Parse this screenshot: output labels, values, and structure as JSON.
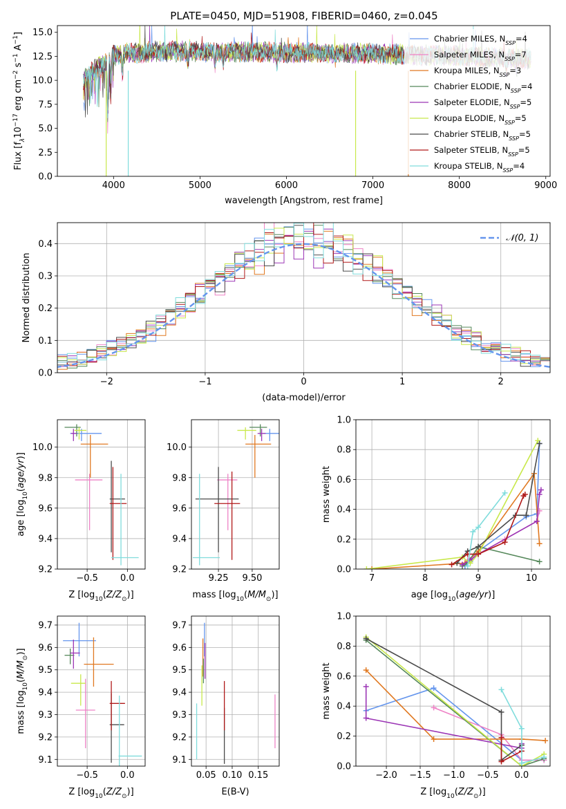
{
  "figure_title": "PLATE=0450, MJD=51908, FIBERID=0460, z=0.045",
  "colors": [
    "#6495ed",
    "#ee82c6",
    "#e07820",
    "#55885a",
    "#9b35b5",
    "#c8e84a",
    "#4a4a4a",
    "#b01818",
    "#7fdcdc"
  ],
  "chart_data": [
    {
      "id": "spectrum",
      "type": "line",
      "title": "PLATE=0450, MJD=51908, FIBERID=0460, z=0.045",
      "xlabel": "wavelength [Angstrom, rest frame]",
      "ylabel_parts": [
        "Flux [f",
        "λ",
        "10",
        "−17",
        " erg cm",
        "−2",
        " s",
        "−1",
        " A",
        "−1",
        "]"
      ],
      "xlim": [
        3350,
        9050
      ],
      "ylim": [
        0,
        15.7
      ],
      "xticks": [
        "4000",
        "5000",
        "6000",
        "7000",
        "8000",
        "9000"
      ],
      "xtick_values": [
        4000,
        5000,
        6000,
        7000,
        8000,
        9000
      ],
      "yticks": [
        "0.0",
        "2.5",
        "5.0",
        "7.5",
        "10.0",
        "12.5",
        "15.0"
      ],
      "ytick_values": [
        0,
        2.5,
        5,
        7.5,
        10,
        12.5,
        15
      ],
      "wave_range": [
        3650,
        8830
      ],
      "continuum": [
        [
          3650,
          10.0
        ],
        [
          3800,
          11.2
        ],
        [
          4000,
          12.6
        ],
        [
          4500,
          13.0
        ],
        [
          5000,
          13.0
        ],
        [
          6000,
          12.9
        ],
        [
          7000,
          12.8
        ],
        [
          8000,
          12.5
        ],
        [
          8830,
          12.2
        ]
      ],
      "absorption_features": [
        [
          3934,
          7.5
        ],
        [
          3969,
          3.0
        ],
        [
          4102,
          2.5
        ],
        [
          4861,
          1.5
        ],
        [
          5175,
          2.0
        ],
        [
          5270,
          1.0
        ],
        [
          5890,
          1.5
        ],
        [
          6563,
          1.0
        ],
        [
          8542,
          1.5
        ],
        [
          8662,
          1.5
        ]
      ],
      "spikes_to_zero": [
        3915,
        4170,
        6800,
        7410
      ],
      "legend_position": "upper right",
      "legend": [
        {
          "name": "Chabrier MILES, N",
          "sub": "SSP",
          "rest": "=4"
        },
        {
          "name": "Salpeter MILES, N",
          "sub": "SSP",
          "rest": "=7"
        },
        {
          "name": "Kroupa MILES, N",
          "sub": "SSP",
          "rest": "=3"
        },
        {
          "name": "Chabrier ELODIE, N",
          "sub": "SSP",
          "rest": "=4"
        },
        {
          "name": "Salpeter ELODIE, N",
          "sub": "SSP",
          "rest": "=5"
        },
        {
          "name": "Kroupa ELODIE, N",
          "sub": "SSP",
          "rest": "=5"
        },
        {
          "name": "Chabrier STELIB, N",
          "sub": "SSP",
          "rest": "=5"
        },
        {
          "name": "Salpeter STELIB, N",
          "sub": "SSP",
          "rest": "=5"
        },
        {
          "name": "Kroupa STELIB, N",
          "sub": "SSP",
          "rest": "=4"
        }
      ]
    },
    {
      "id": "residuals",
      "type": "histogram",
      "xlabel": "(data-model)/error",
      "ylabel": "Normed distribution",
      "xlim": [
        -2.5,
        2.5
      ],
      "ylim": [
        0,
        0.465
      ],
      "xticks": [
        "−2",
        "−1",
        "0",
        "1",
        "2"
      ],
      "xtick_values": [
        -2,
        -1,
        0,
        1,
        2
      ],
      "yticks": [
        "0.0",
        "0.1",
        "0.2",
        "0.3",
        "0.4"
      ],
      "ytick_values": [
        0,
        0.1,
        0.2,
        0.3,
        0.4
      ],
      "grid": true,
      "bin_width": 0.1,
      "reference_curve": {
        "label_math": "𝒩(0, 1)",
        "type": "gaussian",
        "mean": 0,
        "sigma": 1
      },
      "legend_position": "upper right"
    },
    {
      "id": "age-vs-Z",
      "type": "scatter",
      "xlabel": "Z [log10(Z/Z⊙)]",
      "ylabel": "age  [log10(age/yr)]",
      "xlim": [
        -0.87,
        0.22
      ],
      "ylim": [
        9.2,
        10.18
      ],
      "xticks": [
        "−0.5",
        "0.0"
      ],
      "xtick_values": [
        -0.5,
        0.0
      ],
      "yticks": [
        "9.2",
        "9.4",
        "9.6",
        "9.8",
        "10.0"
      ],
      "ytick_values": [
        9.2,
        9.4,
        9.6,
        9.8,
        10.0
      ],
      "grid": true,
      "points": [
        {
          "x": -0.57,
          "y": 10.09,
          "xerr": [
            0.14,
            0.25
          ],
          "yerr": [
            0.05,
            0.03
          ]
        },
        {
          "x": -0.47,
          "y": 9.785,
          "xerr": [
            0.18,
            0.16
          ],
          "yerr": [
            0.33,
            0.04
          ]
        },
        {
          "x": -0.46,
          "y": 10.02,
          "xerr": [
            0.12,
            0.22
          ],
          "yerr": [
            0.22,
            0.06
          ]
        },
        {
          "x": -0.63,
          "y": 10.13,
          "xerr": [
            0.15,
            0.05
          ],
          "yerr": [
            0.06,
            0.02
          ]
        },
        {
          "x": -0.67,
          "y": 10.09,
          "xerr": [
            0.03,
            0.04
          ],
          "yerr": [
            0.05,
            0.03
          ]
        },
        {
          "x": -0.6,
          "y": 10.11,
          "xerr": [
            0.06,
            0.09
          ],
          "yerr": [
            0.06,
            0.02
          ]
        },
        {
          "x": -0.2,
          "y": 9.66,
          "xerr": [
            0.02,
            0.17
          ],
          "yerr": [
            0.35,
            0.25
          ]
        },
        {
          "x": -0.18,
          "y": 9.63,
          "xerr": [
            0.04,
            0.17
          ],
          "yerr": [
            0.37,
            0.24
          ]
        },
        {
          "x": -0.08,
          "y": 9.275,
          "xerr": [
            0.12,
            0.22
          ],
          "yerr": [
            0.05,
            0.55
          ]
        }
      ]
    },
    {
      "id": "age-vs-mass",
      "type": "scatter",
      "xlabel": "mass [log10(M/M⊙)]",
      "ylabel": "",
      "xlim": [
        9.05,
        9.7
      ],
      "ylim": [
        9.2,
        10.18
      ],
      "xticks": [
        "9.25",
        "9.50"
      ],
      "xtick_values": [
        9.25,
        9.5
      ],
      "yticks": [
        "9.2",
        "9.4",
        "9.6",
        "9.8",
        "10.0"
      ],
      "ytick_values": [
        9.2,
        9.4,
        9.6,
        9.8,
        10.0
      ],
      "grid": true,
      "points": [
        {
          "x": 9.63,
          "y": 10.09,
          "xerr": [
            0.05,
            0.08
          ],
          "yerr": [
            0.05,
            0.03
          ]
        },
        {
          "x": 9.32,
          "y": 9.785,
          "xerr": [
            0.08,
            0.07
          ],
          "yerr": [
            0.33,
            0.04
          ]
        },
        {
          "x": 9.52,
          "y": 10.02,
          "xerr": [
            0.07,
            0.12
          ],
          "yerr": [
            0.22,
            0.06
          ]
        },
        {
          "x": 9.56,
          "y": 10.13,
          "xerr": [
            0.08,
            0.05
          ],
          "yerr": [
            0.06,
            0.02
          ]
        },
        {
          "x": 9.57,
          "y": 10.09,
          "xerr": [
            0.03,
            0.03
          ],
          "yerr": [
            0.05,
            0.03
          ]
        },
        {
          "x": 9.45,
          "y": 10.11,
          "xerr": [
            0.06,
            0.08
          ],
          "yerr": [
            0.06,
            0.02
          ]
        },
        {
          "x": 9.25,
          "y": 9.66,
          "xerr": [
            0.17,
            0.15
          ],
          "yerr": [
            0.35,
            0.21
          ]
        },
        {
          "x": 9.35,
          "y": 9.63,
          "xerr": [
            0.13,
            0.06
          ],
          "yerr": [
            0.37,
            0.21
          ]
        },
        {
          "x": 9.11,
          "y": 9.275,
          "xerr": [
            0.05,
            0.15
          ],
          "yerr": [
            0.05,
            0.55
          ]
        }
      ]
    },
    {
      "id": "weight-vs-age",
      "type": "line",
      "xlabel": "age  [log10(age/yr)]",
      "ylabel": "mass weight",
      "xlim": [
        6.7,
        10.35
      ],
      "ylim": [
        0,
        1.0
      ],
      "xticks": [
        "7",
        "8",
        "9",
        "10"
      ],
      "xtick_values": [
        7,
        8,
        9,
        10
      ],
      "yticks": [
        "0.0",
        "0.2",
        "0.4",
        "0.6",
        "0.8",
        "1.0"
      ],
      "ytick_values": [
        0,
        0.2,
        0.4,
        0.6,
        0.8,
        1.0
      ],
      "grid": true,
      "series": [
        {
          "x": [
            8.75,
            8.85,
            9.0,
            9.9,
            10.1,
            10.15
          ],
          "y": [
            0.02,
            0.05,
            0.12,
            0.35,
            0.37,
            0.84
          ]
        },
        {
          "x": [
            8.7,
            8.8,
            9.0,
            9.5,
            10.1,
            10.15
          ],
          "y": [
            0.03,
            0.06,
            0.1,
            0.2,
            0.32,
            0.39
          ]
        },
        {
          "x": [
            7.0,
            8.75,
            9.0,
            10.05,
            10.15
          ],
          "y": [
            0.0,
            0.04,
            0.12,
            0.64,
            0.17
          ]
        },
        {
          "x": [
            8.7,
            8.8,
            9.0,
            10.15
          ],
          "y": [
            0.02,
            0.04,
            0.15,
            0.05
          ]
        },
        {
          "x": [
            8.7,
            8.85,
            9.0,
            10.1,
            10.15,
            10.18
          ],
          "y": [
            0.03,
            0.06,
            0.1,
            0.32,
            0.5,
            0.53
          ]
        },
        {
          "x": [
            6.9,
            8.7,
            8.85,
            9.0,
            10.12
          ],
          "y": [
            0.0,
            0.08,
            0.04,
            0.1,
            0.86
          ]
        },
        {
          "x": [
            8.6,
            8.8,
            9.0,
            9.7,
            9.9,
            10.15
          ],
          "y": [
            0.04,
            0.12,
            0.15,
            0.36,
            0.36,
            0.84
          ]
        },
        {
          "x": [
            8.5,
            8.8,
            9.0,
            9.5,
            9.85,
            9.88
          ],
          "y": [
            0.03,
            0.1,
            0.1,
            0.18,
            0.49,
            0.5
          ]
        },
        {
          "x": [
            8.8,
            8.9,
            9.0,
            9.5
          ],
          "y": [
            0.02,
            0.25,
            0.28,
            0.51
          ]
        }
      ]
    },
    {
      "id": "mass-vs-Z",
      "type": "scatter",
      "xlabel": "Z [log10(Z/Z⊙)]",
      "ylabel": "mass [log10(M/M⊙)]",
      "xlim": [
        -0.87,
        0.22
      ],
      "ylim": [
        9.07,
        9.74
      ],
      "xticks": [
        "−0.5",
        "0.0"
      ],
      "xtick_values": [
        -0.5,
        0.0
      ],
      "yticks": [
        "9.1",
        "9.2",
        "9.3",
        "9.4",
        "9.5",
        "9.6",
        "9.7"
      ],
      "ytick_values": [
        9.1,
        9.2,
        9.3,
        9.4,
        9.5,
        9.6,
        9.7
      ],
      "grid": true,
      "points": [
        {
          "x": -0.6,
          "y": 9.63,
          "xerr": [
            0.2,
            0.21
          ],
          "yerr": [
            0.07,
            0.08
          ]
        },
        {
          "x": -0.52,
          "y": 9.32,
          "xerr": [
            0.12,
            0.12
          ],
          "yerr": [
            0.17,
            0.14
          ]
        },
        {
          "x": -0.42,
          "y": 9.525,
          "xerr": [
            0.12,
            0.25
          ],
          "yerr": [
            0.1,
            0.12
          ]
        },
        {
          "x": -0.71,
          "y": 9.565,
          "xerr": [
            0.07,
            0.05
          ],
          "yerr": [
            0.04,
            0.03
          ]
        },
        {
          "x": -0.67,
          "y": 9.575,
          "xerr": [
            0.04,
            0.08
          ],
          "yerr": [
            0.07,
            0.06
          ]
        },
        {
          "x": -0.58,
          "y": 9.44,
          "xerr": [
            0.12,
            0.06
          ],
          "yerr": [
            0.1,
            0.04
          ]
        },
        {
          "x": -0.2,
          "y": 9.255,
          "xerr": [
            0.02,
            0.16
          ],
          "yerr": [
            0.17,
            0.14
          ]
        },
        {
          "x": -0.2,
          "y": 9.35,
          "xerr": [
            0.02,
            0.17
          ],
          "yerr": [
            0.12,
            0.1
          ]
        },
        {
          "x": -0.1,
          "y": 9.115,
          "xerr": [
            0.01,
            0.28
          ],
          "yerr": [
            0.05,
            0.27
          ]
        }
      ]
    },
    {
      "id": "mass-vs-ebv",
      "type": "scatter",
      "xlabel": "E(B-V)",
      "ylabel": "",
      "xlim": [
        0.022,
        0.19
      ],
      "ylim": [
        9.07,
        9.74
      ],
      "xticks": [
        "0.05",
        "0.10",
        "0.15"
      ],
      "xtick_values": [
        0.05,
        0.1,
        0.15
      ],
      "yticks": [
        "9.1",
        "9.2",
        "9.3",
        "9.4",
        "9.5",
        "9.6",
        "9.7"
      ],
      "ytick_values": [
        9.1,
        9.2,
        9.3,
        9.4,
        9.5,
        9.6,
        9.7
      ],
      "grid": true,
      "points": [
        {
          "x": 0.047,
          "y": 9.63,
          "xerr": [
            0.0,
            0.0
          ],
          "yerr": [
            0.07,
            0.08
          ]
        },
        {
          "x": 0.182,
          "y": 9.27,
          "xerr": [
            0.0,
            0.0
          ],
          "yerr": [
            0.12,
            0.12
          ]
        },
        {
          "x": 0.044,
          "y": 9.55,
          "xerr": [
            0.0,
            0.0
          ],
          "yerr": [
            0.08,
            0.09
          ]
        },
        {
          "x": 0.045,
          "y": 9.5,
          "xerr": [
            0.0,
            0.0
          ],
          "yerr": [
            0.06,
            0.05
          ]
        },
        {
          "x": 0.048,
          "y": 9.55,
          "xerr": [
            0.0,
            0.0
          ],
          "yerr": [
            0.09,
            0.07
          ]
        },
        {
          "x": 0.042,
          "y": 9.44,
          "xerr": [
            0.0,
            0.0
          ],
          "yerr": [
            0.1,
            0.08
          ]
        },
        {
          "x": 0.085,
          "y": 9.23,
          "xerr": [
            0.0,
            0.0
          ],
          "yerr": [
            0.15,
            0.1
          ]
        },
        {
          "x": 0.085,
          "y": 9.32,
          "xerr": [
            0.0,
            0.0
          ],
          "yerr": [
            0.09,
            0.13
          ]
        },
        {
          "x": 0.032,
          "y": 9.2,
          "xerr": [
            0.0,
            0.0
          ],
          "yerr": [
            0.1,
            0.15
          ]
        }
      ]
    },
    {
      "id": "weight-vs-Z",
      "type": "line",
      "xlabel": "Z [log10(Z/Z⊙)]",
      "ylabel": "mass weight",
      "xlim": [
        -2.45,
        0.42
      ],
      "ylim": [
        0,
        1.0
      ],
      "xticks": [
        "−2.0",
        "−1.5",
        "−1.0",
        "−0.5",
        "0.0"
      ],
      "xtick_values": [
        -2.0,
        -1.5,
        -1.0,
        -0.5,
        0.0
      ],
      "yticks": [
        "0.0",
        "0.2",
        "0.4",
        "0.6",
        "0.8",
        "1.0"
      ],
      "ytick_values": [
        0,
        0.2,
        0.4,
        0.6,
        0.8,
        1.0
      ],
      "grid": true,
      "series": [
        {
          "x": [
            -2.3,
            -1.3,
            0.0,
            0.33
          ],
          "y": [
            0.37,
            0.52,
            0.04,
            0.04
          ]
        },
        {
          "x": [
            -1.3,
            -0.3,
            0.0,
            0.33
          ],
          "y": [
            0.39,
            0.21,
            0.04,
            0.04
          ]
        },
        {
          "x": [
            -2.3,
            -1.3,
            0.0,
            0.35
          ],
          "y": [
            0.64,
            0.18,
            0.18,
            0.17
          ]
        },
        {
          "x": [
            -2.3,
            0.0,
            0.33
          ],
          "y": [
            0.84,
            0.0,
            0.05
          ]
        },
        {
          "x": [
            -2.3,
            -2.3,
            0.0,
            0.0
          ],
          "y": [
            0.53,
            0.32,
            0.12,
            0.15
          ]
        },
        {
          "x": [
            -2.3,
            0.0,
            0.33
          ],
          "y": [
            0.86,
            0.0,
            0.08
          ]
        },
        {
          "x": [
            -2.3,
            -0.3,
            -0.3,
            0.0
          ],
          "y": [
            0.85,
            0.36,
            0.04,
            0.14
          ]
        },
        {
          "x": [
            -0.3,
            -0.3,
            0.0
          ],
          "y": [
            0.19,
            0.03,
            0.1
          ]
        },
        {
          "x": [
            -0.3,
            0.0,
            0.0,
            0.33
          ],
          "y": [
            0.51,
            0.25,
            0.02,
            0.06
          ]
        }
      ]
    }
  ]
}
